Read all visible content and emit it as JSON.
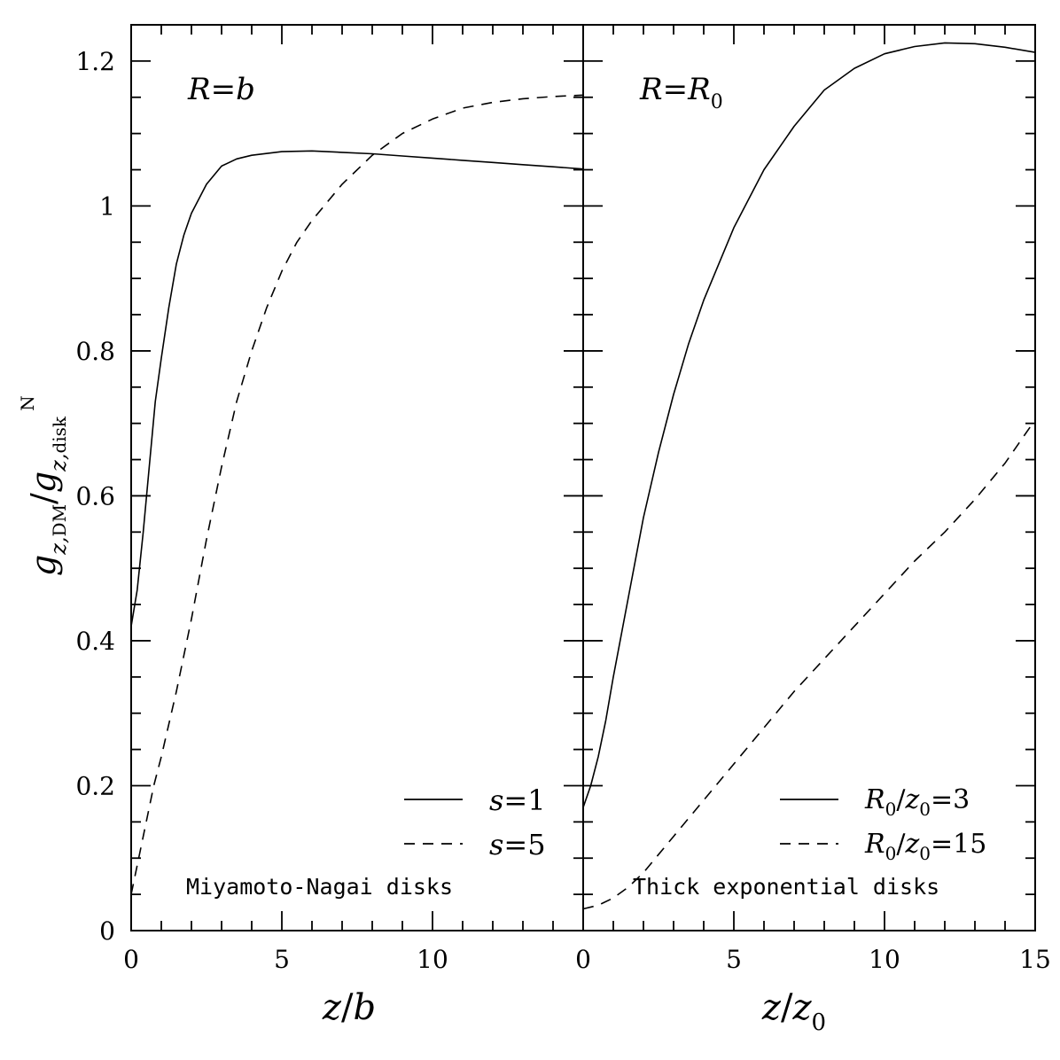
{
  "chart_data": [
    {
      "type": "line",
      "panel": "left",
      "xlabel": {
        "var": "z",
        "slash": "/",
        "unit": "b"
      },
      "ylabel": {
        "g": "g",
        "sup": "N",
        "sub1": "z,",
        "sub1b": "DM",
        "sub2": "z,",
        "sub2b": "disk"
      },
      "xlim": [
        0,
        15
      ],
      "ylim": [
        0,
        1.25
      ],
      "xticks": [
        0,
        5,
        10
      ],
      "xtick_labels": [
        "0",
        "5",
        "10"
      ],
      "yticks": [
        0,
        0.2,
        0.4,
        0.6,
        0.8,
        1.0,
        1.2
      ],
      "ytick_labels": [
        "0",
        "0.2",
        "0.4",
        "0.6",
        "0.8",
        "1",
        "1.2"
      ],
      "annotation_condition": {
        "lhs": "R",
        "eq": "=",
        "rhs": "b"
      },
      "annotation_caption": "Miyamoto-Nagai disks",
      "legend": "bottom-right",
      "series": [
        {
          "name": "s=1",
          "name_var": "s",
          "name_val": "1",
          "style": "solid",
          "x": [
            0.0,
            0.2,
            0.4,
            0.6,
            0.8,
            1.0,
            1.25,
            1.5,
            1.75,
            2.0,
            2.5,
            3.0,
            3.5,
            4.0,
            5.0,
            6.0,
            7.0,
            8.0,
            9.0,
            10.0,
            11.0,
            12.0,
            13.0,
            14.0,
            15.0
          ],
          "y": [
            0.42,
            0.47,
            0.55,
            0.64,
            0.73,
            0.79,
            0.86,
            0.92,
            0.96,
            0.99,
            1.03,
            1.055,
            1.065,
            1.07,
            1.075,
            1.076,
            1.074,
            1.072,
            1.069,
            1.066,
            1.063,
            1.06,
            1.057,
            1.054,
            1.051
          ]
        },
        {
          "name": "s=5",
          "name_var": "s",
          "name_val": "5",
          "style": "dashed",
          "x": [
            0.0,
            0.25,
            0.5,
            0.75,
            1.0,
            1.5,
            2.0,
            2.5,
            3.0,
            3.5,
            4.0,
            4.5,
            5.0,
            5.5,
            6.0,
            7.0,
            8.0,
            9.0,
            10.0,
            11.0,
            12.0,
            13.0,
            14.0,
            15.0
          ],
          "y": [
            0.05,
            0.1,
            0.15,
            0.2,
            0.24,
            0.33,
            0.43,
            0.54,
            0.64,
            0.73,
            0.8,
            0.86,
            0.91,
            0.95,
            0.98,
            1.03,
            1.07,
            1.1,
            1.12,
            1.135,
            1.143,
            1.148,
            1.151,
            1.153
          ]
        }
      ]
    },
    {
      "type": "line",
      "panel": "right",
      "xlabel": {
        "var": "z",
        "slash": "/",
        "unit": "z",
        "unit_sub": "0"
      },
      "xlim": [
        0,
        15
      ],
      "ylim": [
        0,
        1.25
      ],
      "xticks": [
        0,
        5,
        10,
        15
      ],
      "xtick_labels": [
        "0",
        "5",
        "10",
        "15"
      ],
      "yticks": [
        0,
        0.2,
        0.4,
        0.6,
        0.8,
        1.0,
        1.2
      ],
      "annotation_condition": {
        "lhs": "R",
        "eq": "=",
        "rhs": "R",
        "rhs_sub": "0"
      },
      "annotation_caption": "Thick exponential disks",
      "legend": "bottom-right",
      "series": [
        {
          "name": "R0/z0=3",
          "name_a": "R",
          "name_a_sub": "0",
          "name_slash": "/",
          "name_b": "z",
          "name_b_sub": "0",
          "name_eq": "=",
          "name_val": "3",
          "style": "solid",
          "x": [
            0.0,
            0.25,
            0.5,
            0.75,
            1.0,
            1.5,
            2.0,
            2.5,
            3.0,
            3.5,
            4.0,
            5.0,
            6.0,
            7.0,
            8.0,
            9.0,
            10.0,
            11.0,
            12.0,
            13.0,
            14.0,
            15.0
          ],
          "y": [
            0.17,
            0.2,
            0.24,
            0.29,
            0.35,
            0.46,
            0.57,
            0.66,
            0.74,
            0.81,
            0.87,
            0.97,
            1.05,
            1.11,
            1.16,
            1.19,
            1.21,
            1.22,
            1.225,
            1.224,
            1.219,
            1.212
          ]
        },
        {
          "name": "R0/z0=15",
          "name_a": "R",
          "name_a_sub": "0",
          "name_slash": "/",
          "name_b": "z",
          "name_b_sub": "0",
          "name_eq": "=",
          "name_val": "15",
          "style": "dashed",
          "x": [
            0.0,
            0.5,
            1.0,
            1.5,
            2.0,
            3.0,
            4.0,
            5.0,
            6.0,
            7.0,
            8.0,
            9.0,
            10.0,
            11.0,
            12.0,
            13.0,
            14.0,
            15.0
          ],
          "y": [
            0.03,
            0.035,
            0.045,
            0.06,
            0.08,
            0.13,
            0.18,
            0.23,
            0.28,
            0.33,
            0.375,
            0.42,
            0.465,
            0.51,
            0.55,
            0.595,
            0.645,
            0.705
          ]
        }
      ]
    }
  ]
}
